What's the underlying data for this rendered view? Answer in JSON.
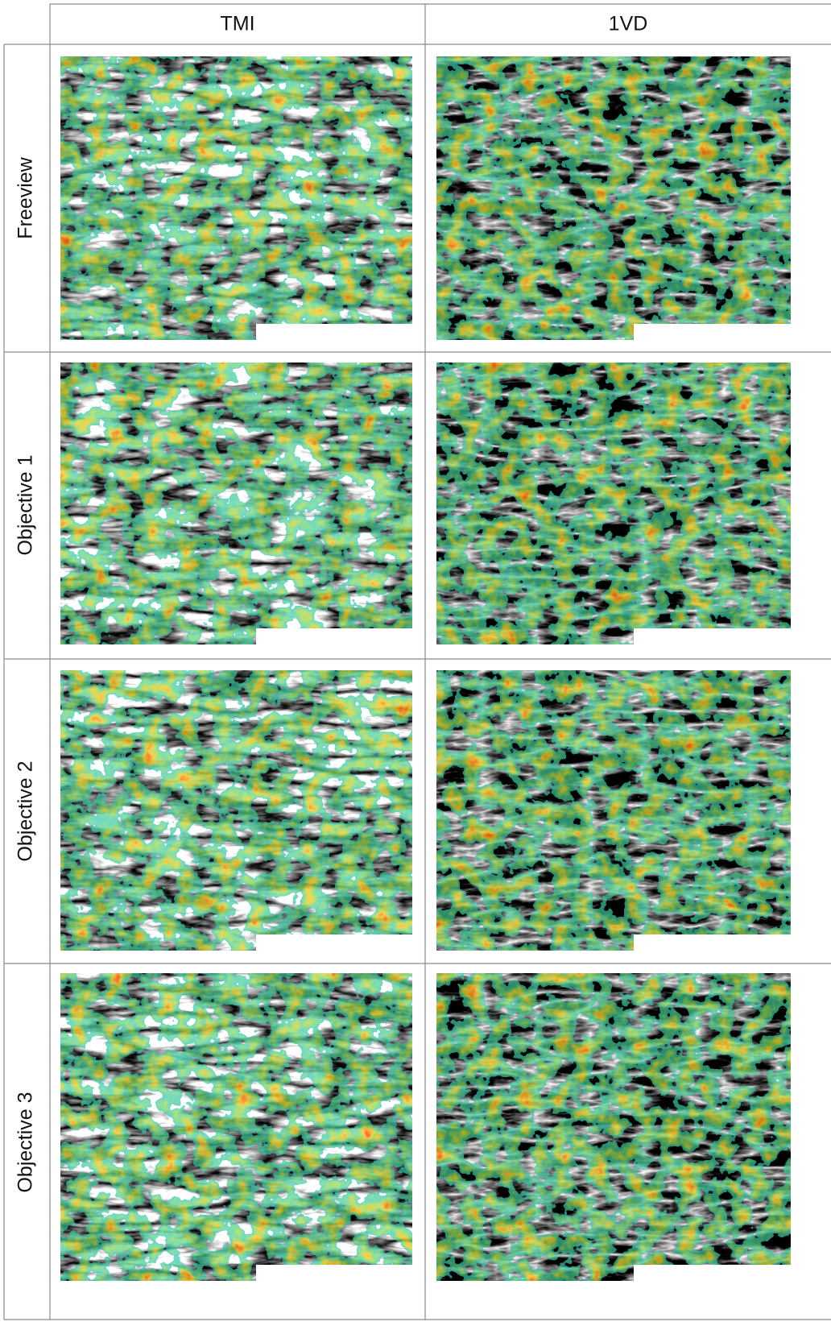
{
  "table": {
    "columns": [
      "TMI",
      "1VD"
    ],
    "rows": [
      "Freeview",
      "Objective 1",
      "Objective 2",
      "Objective 3"
    ]
  }
}
